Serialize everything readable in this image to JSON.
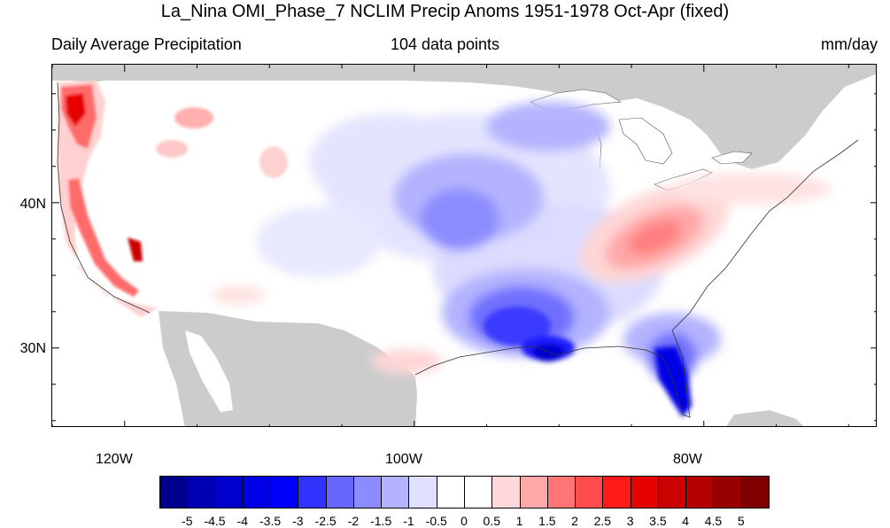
{
  "header": {
    "title": "La_Nina OMI_Phase_7 NCLIM Precip Anoms 1951-1978 Oct-Apr (fixed)",
    "left_subtitle": "Daily Average Precipitation",
    "center_subtitle": "104 data points",
    "right_subtitle": "mm/day"
  },
  "map": {
    "region": "Contiguous United States",
    "projection": "cylindrical equidistant",
    "lon_range": [
      -125,
      -68
    ],
    "lat_range": [
      24.5,
      49.5
    ],
    "land_background": "#ffffff",
    "ocean_background": "#ffffff",
    "non_data_land_color": "#cccccc",
    "lat_ticks": [
      {
        "value": 40,
        "label": "40N"
      },
      {
        "value": 30,
        "label": "30N"
      }
    ],
    "lon_ticks": [
      {
        "value": -120,
        "label": "120W"
      },
      {
        "value": -100,
        "label": "100W"
      },
      {
        "value": -80,
        "label": "80W"
      }
    ],
    "anomaly_regions": [
      {
        "name": "Pacific Northwest coast",
        "sign": "positive",
        "level": "strong"
      },
      {
        "name": "California Sierra",
        "sign": "positive",
        "level": "strong"
      },
      {
        "name": "Ohio / Tennessee Valley",
        "sign": "positive",
        "level": "moderate"
      },
      {
        "name": "Central Plains",
        "sign": "negative",
        "level": "moderate"
      },
      {
        "name": "Lower Mississippi / Gulf Coast",
        "sign": "negative",
        "level": "strong"
      },
      {
        "name": "Florida Peninsula",
        "sign": "negative",
        "level": "strong"
      }
    ]
  },
  "colorbar": {
    "labels": [
      "-5",
      "-4.5",
      "-4",
      "-3.5",
      "-3",
      "-2.5",
      "-2",
      "-1.5",
      "-1",
      "-0.5",
      "0",
      "0.5",
      "1",
      "1.5",
      "2",
      "2.5",
      "3",
      "3.5",
      "4",
      "4.5",
      "5"
    ],
    "colors": [
      "#00008f",
      "#0000b3",
      "#0000cc",
      "#0000e6",
      "#0000ff",
      "#3333ff",
      "#6666ff",
      "#8c8cff",
      "#b3b3ff",
      "#e0e0ff",
      "#ffffff",
      "#ffffff",
      "#ffd9d9",
      "#ffa8a8",
      "#ff7575",
      "#ff4d4d",
      "#ff1a1a",
      "#e60000",
      "#cc0000",
      "#b30000",
      "#990000",
      "#800000"
    ]
  }
}
